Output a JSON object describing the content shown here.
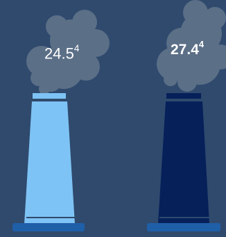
{
  "stacks": [
    {
      "value": "24.5",
      "footnote": "4",
      "bold": false,
      "color": "#7ec3f5"
    },
    {
      "value": "27.4",
      "footnote": "4",
      "bold": true,
      "color": "#06205a"
    }
  ],
  "colors": {
    "background": "#2f4a6d",
    "smoke": "#5b6f87",
    "base": "#1f5fa8",
    "stack_outline": "#1a3c66"
  }
}
